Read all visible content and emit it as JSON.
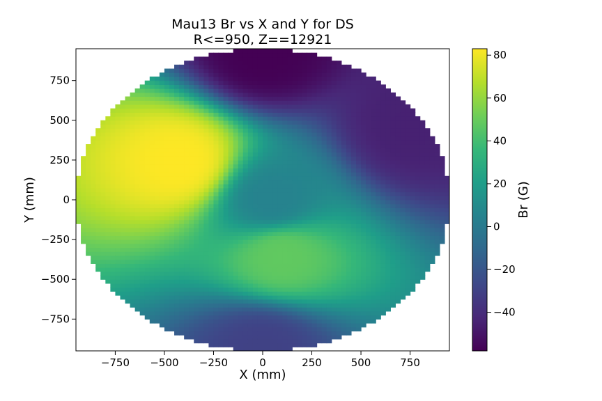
{
  "chart_data": {
    "type": "heatmap",
    "title": "Mau13 Br vs X and Y for DS",
    "subtitle": "R<=950, Z==12921",
    "xlabel": "X (mm)",
    "ylabel": "Y (mm)",
    "xlim": [
      -950,
      950
    ],
    "ylim": [
      -950,
      950
    ],
    "x_ticks": [
      -750,
      -500,
      -250,
      0,
      250,
      500,
      750
    ],
    "y_ticks": [
      -750,
      -500,
      -250,
      0,
      250,
      500,
      750
    ],
    "region": "R<=950",
    "grid": false,
    "colorbar": {
      "label": "Br (G)",
      "colormap": "viridis",
      "range": [
        -58,
        83
      ],
      "ticks": [
        -40,
        -20,
        0,
        20,
        40,
        60,
        80
      ],
      "stops": [
        "#440154",
        "#482878",
        "#3e4989",
        "#31688e",
        "#26828e",
        "#1f9e89",
        "#35b779",
        "#6ece58",
        "#b5de2b",
        "#fde725"
      ]
    },
    "field_features": [
      {
        "x": -420,
        "y": 240,
        "value": 83
      },
      {
        "x": 50,
        "y": 0,
        "value": 5
      },
      {
        "x": 0,
        "y": 930,
        "value": -58
      },
      {
        "x": 750,
        "y": 450,
        "value": -45
      },
      {
        "x": 0,
        "y": -930,
        "value": -30
      },
      {
        "x": 100,
        "y": -350,
        "value": 48
      }
    ]
  }
}
